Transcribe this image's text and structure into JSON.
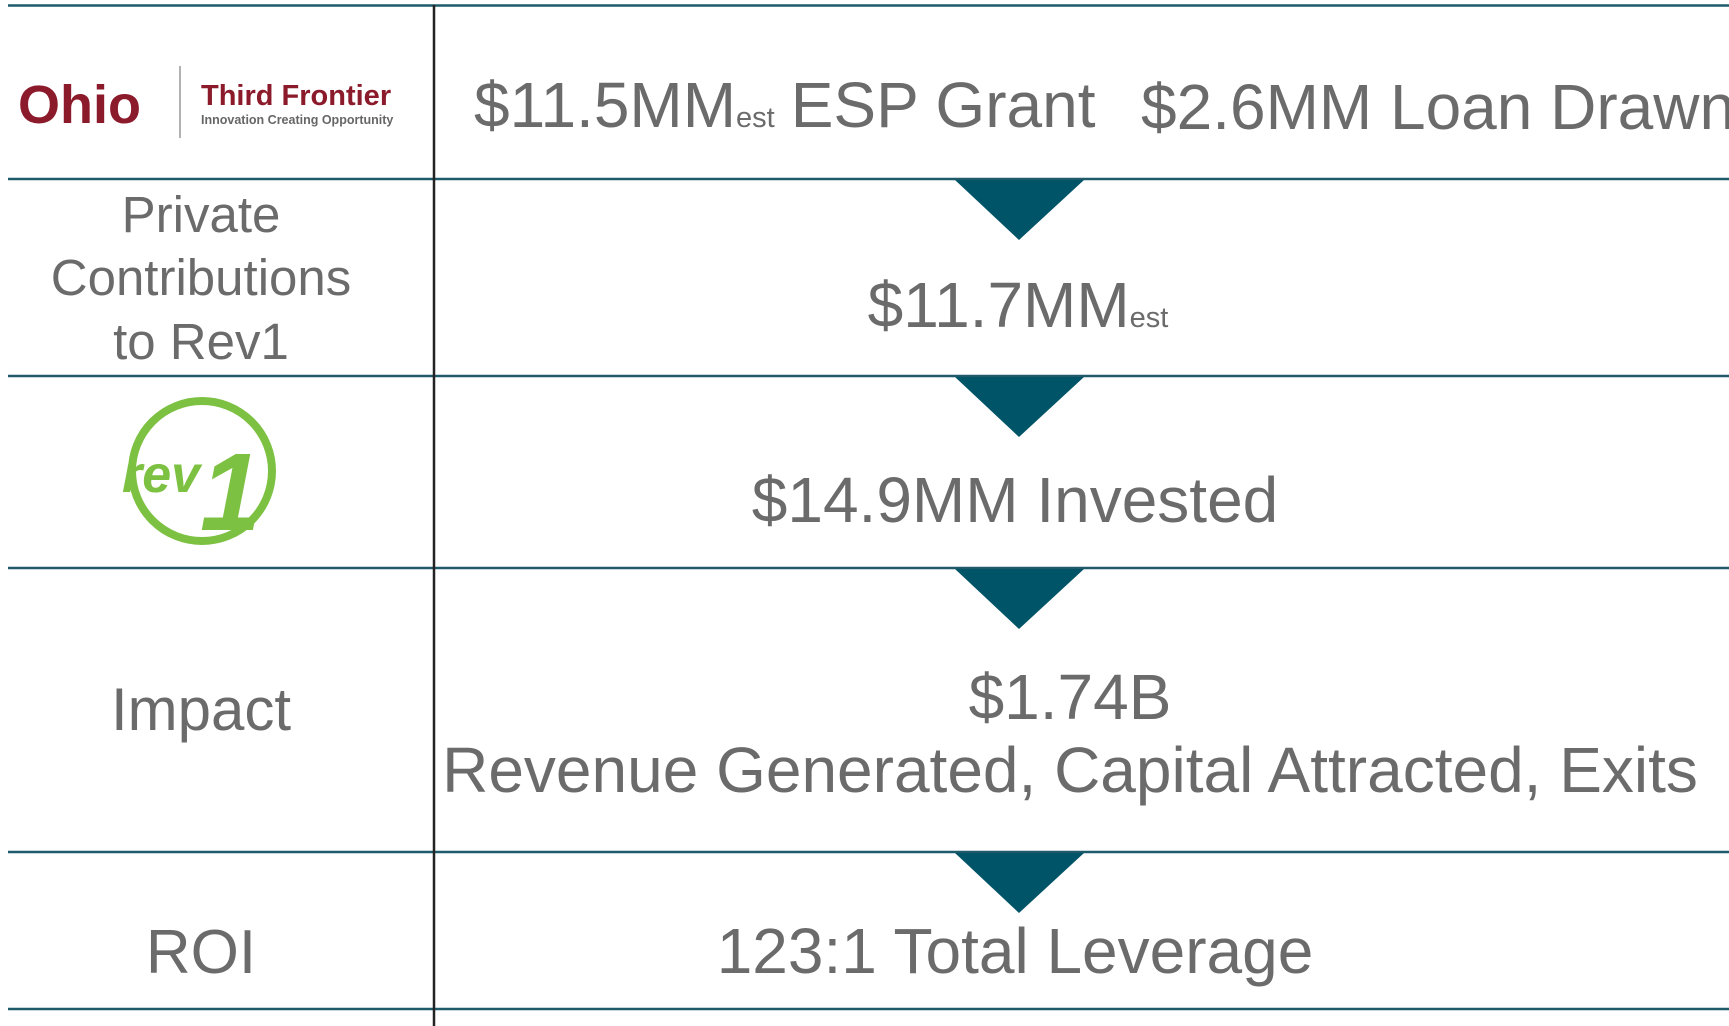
{
  "rows": [
    {
      "logo": {
        "name": "Ohio",
        "brand": "Third Frontier",
        "tagline": "Innovation Creating Opportunity"
      },
      "value": {
        "amount": "$11.5MM",
        "qualifier": "est",
        "text": "ESP Grant",
        "second": "$2.6MM Loan Drawn"
      }
    },
    {
      "label": [
        "Private",
        "Contributions",
        "to Rev1"
      ],
      "value": {
        "amount": "$11.7MM",
        "qualifier": "est"
      }
    },
    {
      "logo": {
        "name": "rev",
        "mark": "1"
      },
      "value": {
        "text": "$14.9MM Invested"
      }
    },
    {
      "label": [
        "Impact"
      ],
      "value": {
        "amount": "$1.74B",
        "text": "Revenue Generated, Capital Attracted, Exits"
      }
    },
    {
      "label": [
        "ROI"
      ],
      "value": {
        "text": "123:1 Total Leverage"
      }
    }
  ]
}
